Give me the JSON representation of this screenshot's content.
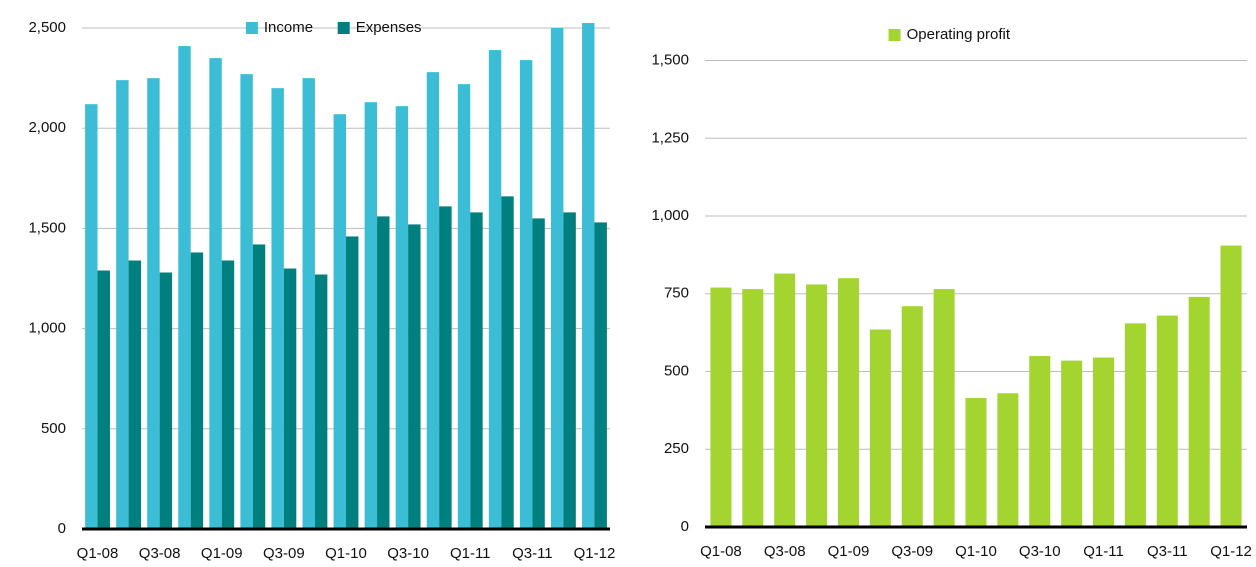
{
  "chart_data": [
    {
      "type": "bar",
      "categories": [
        "Q1-08",
        null,
        "Q3-08",
        null,
        "Q1-09",
        null,
        "Q3-09",
        null,
        "Q1-10",
        null,
        "Q3-10",
        null,
        "Q1-11",
        null,
        "Q3-11",
        null,
        "Q1-12"
      ],
      "series": [
        {
          "name": "Income",
          "color": "#3bbdd6",
          "values": [
            2120,
            2240,
            2250,
            2410,
            2350,
            2270,
            2200,
            2250,
            2070,
            2130,
            2110,
            2280,
            2220,
            2390,
            2340,
            2500,
            2525
          ]
        },
        {
          "name": "Expenses",
          "color": "#007f7f",
          "values": [
            1290,
            1340,
            1280,
            1380,
            1340,
            1420,
            1300,
            1270,
            1460,
            1560,
            1520,
            1610,
            1580,
            1660,
            1550,
            1580,
            1530
          ]
        }
      ],
      "ylim": [
        0,
        2600
      ],
      "yticks": [
        0,
        500,
        {
          "value": 1000,
          "label": "1,000"
        },
        {
          "value": 1500,
          "label": "1,500"
        },
        {
          "value": 2000,
          "label": "2,000"
        },
        {
          "value": 2500,
          "label": "2,500"
        }
      ],
      "grid": true,
      "legend": "top"
    },
    {
      "type": "bar",
      "categories": [
        "Q1-08",
        null,
        "Q3-08",
        null,
        "Q1-09",
        null,
        "Q3-09",
        null,
        "Q1-10",
        null,
        "Q3-10",
        null,
        "Q1-11",
        null,
        "Q3-11",
        null,
        "Q1-12"
      ],
      "series": [
        {
          "name": "Operating profit",
          "color": "#a4d42f",
          "values": [
            770,
            765,
            815,
            780,
            800,
            635,
            710,
            765,
            415,
            430,
            550,
            535,
            545,
            655,
            680,
            740,
            905
          ]
        }
      ],
      "ylim": [
        0,
        1550
      ],
      "yticks": [
        0,
        250,
        500,
        750,
        {
          "value": 1000,
          "label": "1,000"
        },
        {
          "value": 1250,
          "label": "1,250"
        },
        {
          "value": 1500,
          "label": "1,500"
        }
      ],
      "grid": true,
      "legend": "top"
    }
  ]
}
